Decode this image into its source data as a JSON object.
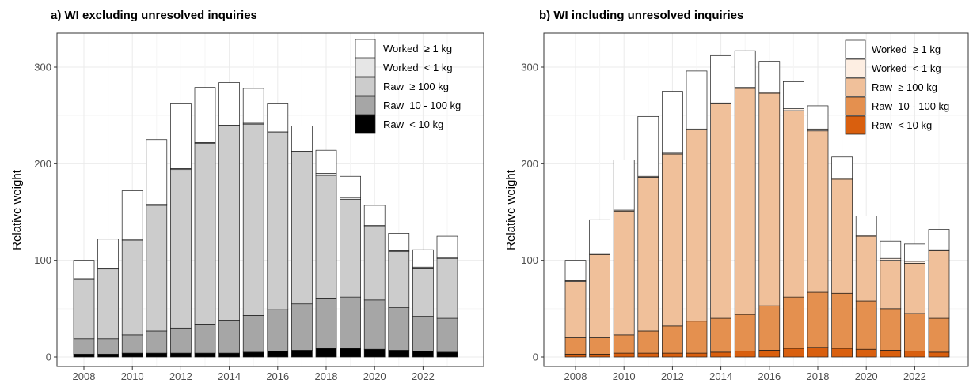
{
  "chart_data": [
    {
      "type": "bar",
      "stacked": true,
      "title": "a) WI excluding unresolved inquiries",
      "xlabel": "",
      "ylabel": "Relative weight",
      "categories": [
        "2008",
        "2009",
        "2010",
        "2011",
        "2012",
        "2013",
        "2014",
        "2015",
        "2016",
        "2017",
        "2018",
        "2019",
        "2020",
        "2021",
        "2022",
        "2023"
      ],
      "x_tick_labels": [
        "2008",
        "2010",
        "2012",
        "2014",
        "2016",
        "2018",
        "2020",
        "2022"
      ],
      "y_ticks": [
        "0",
        "100",
        "200",
        "300"
      ],
      "ylim": [
        0,
        330
      ],
      "grid": true,
      "legend_position": "top-right",
      "series": [
        {
          "name": "Raw  < 10 kg",
          "color": "#000000",
          "values": [
            3,
            3,
            4,
            4,
            4,
            4,
            4,
            5,
            6,
            7,
            9,
            9,
            8,
            7,
            6,
            5
          ]
        },
        {
          "name": "Raw  10 - 100 kg",
          "color": "#a6a6a6",
          "values": [
            16,
            16,
            19,
            23,
            26,
            30,
            34,
            38,
            43,
            48,
            52,
            53,
            51,
            44,
            36,
            35
          ]
        },
        {
          "name": "Raw  ≥ 100 kg",
          "color": "#cccccc",
          "values": [
            61,
            72,
            98,
            130,
            164,
            187,
            201,
            198,
            183,
            157,
            127,
            101,
            76,
            58,
            50,
            62
          ]
        },
        {
          "name": "Worked  < 1 kg",
          "color": "#e6e6e6",
          "values": [
            1,
            1,
            1,
            1,
            1,
            1,
            1,
            1,
            1,
            1,
            2,
            2,
            1,
            1,
            1,
            1
          ]
        },
        {
          "name": "Worked  ≥ 1 kg",
          "color": "#ffffff",
          "values": [
            19,
            30,
            50,
            67,
            67,
            57,
            44,
            36,
            29,
            26,
            24,
            22,
            21,
            18,
            18,
            22
          ]
        }
      ]
    },
    {
      "type": "bar",
      "stacked": true,
      "title": "b) WI including unresolved inquiries",
      "xlabel": "",
      "ylabel": "Relative weight",
      "categories": [
        "2008",
        "2009",
        "2010",
        "2011",
        "2012",
        "2013",
        "2014",
        "2015",
        "2016",
        "2017",
        "2018",
        "2019",
        "2020",
        "2021",
        "2022",
        "2023"
      ],
      "x_tick_labels": [
        "2008",
        "2010",
        "2012",
        "2014",
        "2016",
        "2018",
        "2020",
        "2022"
      ],
      "y_ticks": [
        "0",
        "100",
        "200",
        "300"
      ],
      "ylim": [
        0,
        330
      ],
      "grid": true,
      "legend_position": "top-right",
      "series": [
        {
          "name": "Raw  < 10 kg",
          "color": "#d95f0e",
          "values": [
            3,
            3,
            4,
            4,
            4,
            4,
            5,
            6,
            7,
            9,
            10,
            9,
            8,
            7,
            6,
            5
          ]
        },
        {
          "name": "Raw  10 - 100 kg",
          "color": "#e4904f",
          "values": [
            17,
            17,
            19,
            23,
            28,
            33,
            35,
            38,
            46,
            53,
            57,
            57,
            50,
            43,
            39,
            35
          ]
        },
        {
          "name": "Raw  ≥ 100 kg",
          "color": "#f0c09a",
          "values": [
            58,
            86,
            128,
            159,
            178,
            198,
            222,
            234,
            220,
            193,
            167,
            118,
            67,
            50,
            52,
            70
          ]
        },
        {
          "name": "Worked  < 1 kg",
          "color": "#fdeee2",
          "values": [
            1,
            1,
            1,
            1,
            1,
            1,
            1,
            1,
            1,
            2,
            2,
            1,
            1,
            2,
            2,
            1
          ]
        },
        {
          "name": "Worked  ≥ 1 kg",
          "color": "#ffffff",
          "values": [
            21,
            35,
            52,
            62,
            64,
            60,
            49,
            38,
            32,
            28,
            24,
            22,
            20,
            18,
            18,
            21
          ]
        }
      ]
    }
  ]
}
